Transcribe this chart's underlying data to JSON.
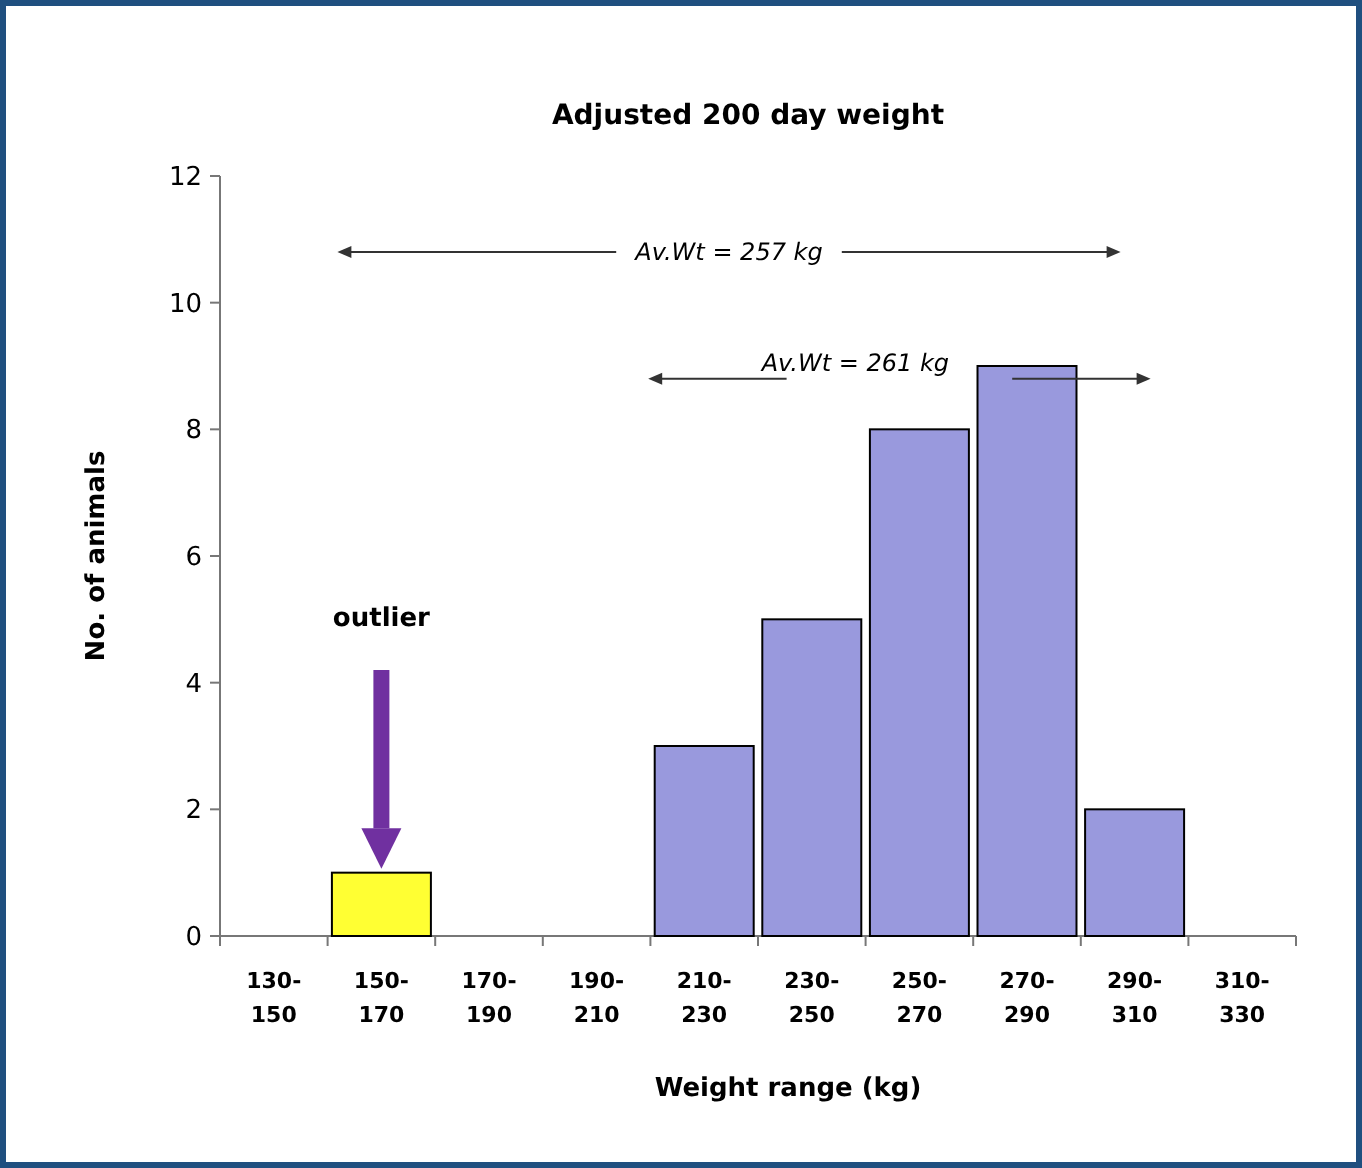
{
  "chart_data": {
    "type": "bar",
    "title": "Adjusted 200 day weight",
    "xlabel": "Weight range (kg)",
    "ylabel": "No. of animals",
    "categories": [
      "130-150",
      "150-170",
      "170-190",
      "190-210",
      "210-230",
      "230-250",
      "250-270",
      "270-290",
      "290-310",
      "310-330"
    ],
    "values": [
      0,
      1,
      0,
      0,
      3,
      5,
      8,
      9,
      2,
      0
    ],
    "colors": [
      "#9999dd",
      "#ffff33",
      "#9999dd",
      "#9999dd",
      "#9999dd",
      "#9999dd",
      "#9999dd",
      "#9999dd",
      "#9999dd",
      "#9999dd"
    ],
    "ylim": [
      0,
      12
    ],
    "yticks": [
      0,
      2,
      4,
      6,
      8,
      10,
      12
    ],
    "grid": false,
    "annotations": [
      "Av.Wt = 257 kg",
      "Av.Wt = 261 kg",
      "outlier"
    ]
  }
}
